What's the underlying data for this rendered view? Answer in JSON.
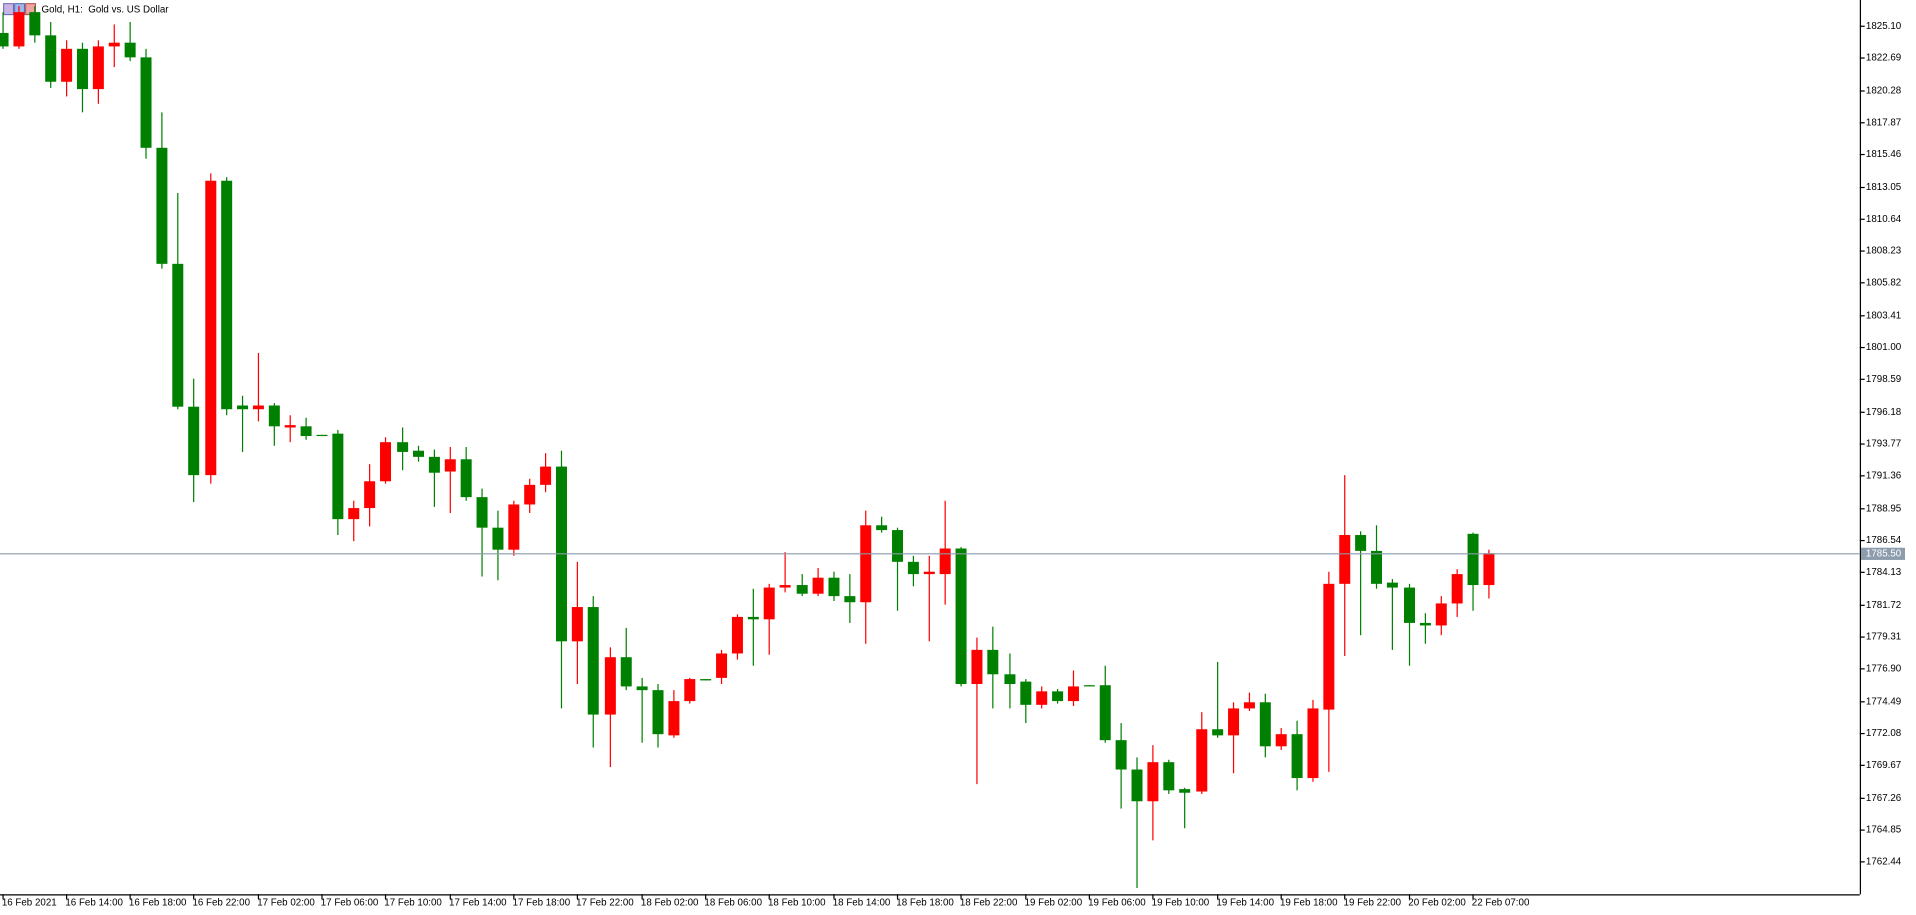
{
  "chart_data": {
    "type": "candlestick",
    "title": "Gold, H1:  Gold vs. US Dollar",
    "categories": [
      "16 Feb 2021",
      null,
      null,
      null,
      "16 Feb 14:00",
      null,
      null,
      null,
      "16 Feb 18:00",
      null,
      null,
      null,
      "16 Feb 22:00",
      null,
      null,
      null,
      "17 Feb 02:00",
      null,
      null,
      null,
      "17 Feb 06:00",
      null,
      null,
      null,
      "17 Feb 10:00",
      null,
      null,
      null,
      "17 Feb 14:00",
      null,
      null,
      null,
      "17 Feb 18:00",
      null,
      null,
      null,
      "17 Feb 22:00",
      null,
      null,
      null,
      "18 Feb 02:00",
      null,
      null,
      null,
      "18 Feb 06:00",
      null,
      null,
      null,
      "18 Feb 10:00",
      null,
      null,
      null,
      "18 Feb 14:00",
      null,
      null,
      null,
      "18 Feb 18:00",
      null,
      null,
      null,
      "18 Feb 22:00",
      null,
      null,
      null,
      "19 Feb 02:00",
      null,
      null,
      null,
      "19 Feb 06:00",
      null,
      null,
      null,
      "19 Feb 10:00",
      null,
      null,
      null,
      "19 Feb 14:00",
      null,
      null,
      null,
      "19 Feb 18:00",
      null,
      null,
      null,
      "19 Feb 22:00",
      null,
      null,
      null,
      "20 Feb 02:00",
      null,
      null,
      null,
      "22 Feb 07:00",
      null
    ],
    "open": [
      1824.55,
      1823.54,
      1826.11,
      1824.37,
      1820.89,
      1823.36,
      1820.34,
      1823.54,
      1823.82,
      1822.72,
      1815.94,
      1807.24,
      1796.53,
      1791.4,
      1813.47,
      1796.62,
      1796.34,
      1796.62,
      1794.97,
      1795.06,
      1794.42,
      1794.51,
      1788.1,
      1788.93,
      1790.94,
      1793.87,
      1793.23,
      1792.77,
      1791.67,
      1792.59,
      1789.75,
      1787.46,
      1785.81,
      1789.2,
      1790.67,
      1792.04,
      1778.94,
      1781.51,
      1773.45,
      1777.75,
      1775.56,
      1775.28,
      1771.89,
      1774.46,
      1776.11,
      1776.2,
      1778.03,
      1780.77,
      1780.59,
      1782.97,
      1783.16,
      1782.51,
      1783.71,
      1782.33,
      1781.87,
      1787.64,
      1787.28,
      1784.9,
      1783.98,
      1783.98,
      1785.9,
      1775.74,
      1778.3,
      1776.47,
      1775.92,
      1774.18,
      1775.19,
      1774.46,
      1775.65,
      1775.65,
      1771.53,
      1769.33,
      1766.95,
      1769.88,
      1767.86,
      1767.68,
      1772.35,
      1771.89,
      1773.91,
      1774.37,
      1771.07,
      1771.98,
      1768.69,
      1773.82,
      1783.25,
      1786.91,
      1785.72,
      1783.34,
      1782.97,
      1780.32,
      1780.13,
      1781.78,
      1787.0,
      1783.16
    ],
    "high": [
      1826.11,
      1826.56,
      1826.56,
      1825.37,
      1824.0,
      1823.82,
      1824.0,
      1825.19,
      1825.37,
      1823.36,
      1818.6,
      1812.55,
      1798.63,
      1814.02,
      1813.74,
      1797.35,
      1800.56,
      1796.8,
      1795.89,
      1795.7,
      1794.42,
      1794.79,
      1789.48,
      1792.22,
      1794.24,
      1794.97,
      1793.6,
      1793.32,
      1793.51,
      1793.51,
      1790.39,
      1788.74,
      1789.48,
      1791.12,
      1793.05,
      1793.23,
      1784.9,
      1782.33,
      1778.49,
      1779.95,
      1776.2,
      1775.74,
      1775.28,
      1776.2,
      1776.11,
      1778.3,
      1780.96,
      1782.88,
      1783.25,
      1785.63,
      1783.98,
      1784.44,
      1784.16,
      1783.98,
      1788.74,
      1788.28,
      1787.46,
      1785.35,
      1785.35,
      1789.48,
      1786.0,
      1779.22,
      1780.04,
      1778.03,
      1776.11,
      1775.56,
      1775.37,
      1776.75,
      1775.65,
      1777.11,
      1772.81,
      1770.24,
      1771.16,
      1770.06,
      1767.96,
      1773.63,
      1777.39,
      1774.37,
      1775.1,
      1775.01,
      1772.44,
      1772.99,
      1774.55,
      1784.16,
      1791.4,
      1787.19,
      1787.64,
      1783.61,
      1783.25,
      1781.05,
      1782.33,
      1784.35,
      1787.09,
      1785.81
    ],
    "low": [
      1823.36,
      1823.36,
      1823.82,
      1820.43,
      1819.79,
      1818.6,
      1819.24,
      1821.99,
      1822.44,
      1815.12,
      1806.88,
      1796.34,
      1789.38,
      1790.76,
      1795.89,
      1793.14,
      1795.43,
      1793.6,
      1793.87,
      1794.05,
      1794.33,
      1786.91,
      1786.45,
      1787.55,
      1790.76,
      1791.77,
      1792.41,
      1789.02,
      1788.56,
      1789.48,
      1783.8,
      1783.52,
      1785.35,
      1788.56,
      1790.12,
      1773.91,
      1775.74,
      1770.98,
      1769.51,
      1775.28,
      1771.34,
      1770.98,
      1771.71,
      1774.27,
      1776.01,
      1775.74,
      1777.57,
      1777.11,
      1777.93,
      1782.61,
      1782.33,
      1782.33,
      1781.96,
      1780.32,
      1778.76,
      1787.09,
      1781.23,
      1783.07,
      1778.94,
      1781.69,
      1775.56,
      1768.23,
      1773.91,
      1773.91,
      1772.81,
      1773.91,
      1774.27,
      1774.09,
      1775.56,
      1771.34,
      1766.4,
      1760.45,
      1764.02,
      1767.5,
      1764.93,
      1767.5,
      1771.71,
      1769.05,
      1773.72,
      1770.24,
      1770.79,
      1767.77,
      1768.41,
      1769.15,
      1777.84,
      1779.4,
      1782.88,
      1778.3,
      1777.11,
      1778.76,
      1779.4,
      1780.77,
      1781.23,
      1782.15
    ],
    "close": [
      1823.54,
      1826.11,
      1824.37,
      1820.89,
      1823.36,
      1820.34,
      1823.54,
      1823.82,
      1822.72,
      1815.94,
      1807.24,
      1796.53,
      1791.4,
      1813.47,
      1796.34,
      1796.34,
      1796.62,
      1795.06,
      1795.15,
      1794.33,
      1794.33,
      1788.1,
      1788.93,
      1790.94,
      1793.87,
      1793.14,
      1792.77,
      1791.58,
      1792.59,
      1789.75,
      1787.46,
      1785.81,
      1789.2,
      1790.67,
      1792.04,
      1778.94,
      1781.51,
      1773.45,
      1777.75,
      1775.56,
      1775.28,
      1771.98,
      1774.46,
      1776.11,
      1776.01,
      1778.03,
      1780.77,
      1780.59,
      1782.97,
      1783.16,
      1782.51,
      1783.71,
      1782.33,
      1781.87,
      1787.64,
      1787.28,
      1784.9,
      1783.98,
      1784.16,
      1785.9,
      1775.74,
      1778.3,
      1776.47,
      1775.74,
      1774.18,
      1775.19,
      1774.46,
      1775.56,
      1775.56,
      1771.53,
      1769.33,
      1766.95,
      1769.88,
      1767.77,
      1767.59,
      1772.35,
      1771.89,
      1773.91,
      1774.37,
      1771.07,
      1771.98,
      1768.69,
      1773.91,
      1783.25,
      1786.91,
      1785.72,
      1783.25,
      1782.97,
      1780.32,
      1780.13,
      1781.78,
      1783.98,
      1783.16,
      1785.54
    ],
    "up_color": "#ff0000",
    "down_color": "#008000",
    "ylim": [
      1759.98,
      1827.02
    ],
    "yticks": [
      {
        "value": 1825.1,
        "label": "1825.10"
      },
      1822.69,
      1820.28,
      1817.87,
      1815.46,
      1813.05,
      1810.64,
      1808.23,
      1805.82,
      1803.41,
      {
        "value": 1801,
        "label": "1801.00"
      },
      1798.59,
      1796.18,
      1793.77,
      1791.36,
      1788.95,
      1786.54,
      1784.13,
      1781.72,
      1779.31,
      {
        "value": 1776.9,
        "label": "1776.90"
      },
      1774.49,
      1772.08,
      1769.67,
      1767.26,
      1764.85,
      1762.44
    ],
    "current_price": {
      "value": 1785.5,
      "label": "1785.50"
    },
    "grid": false
  }
}
